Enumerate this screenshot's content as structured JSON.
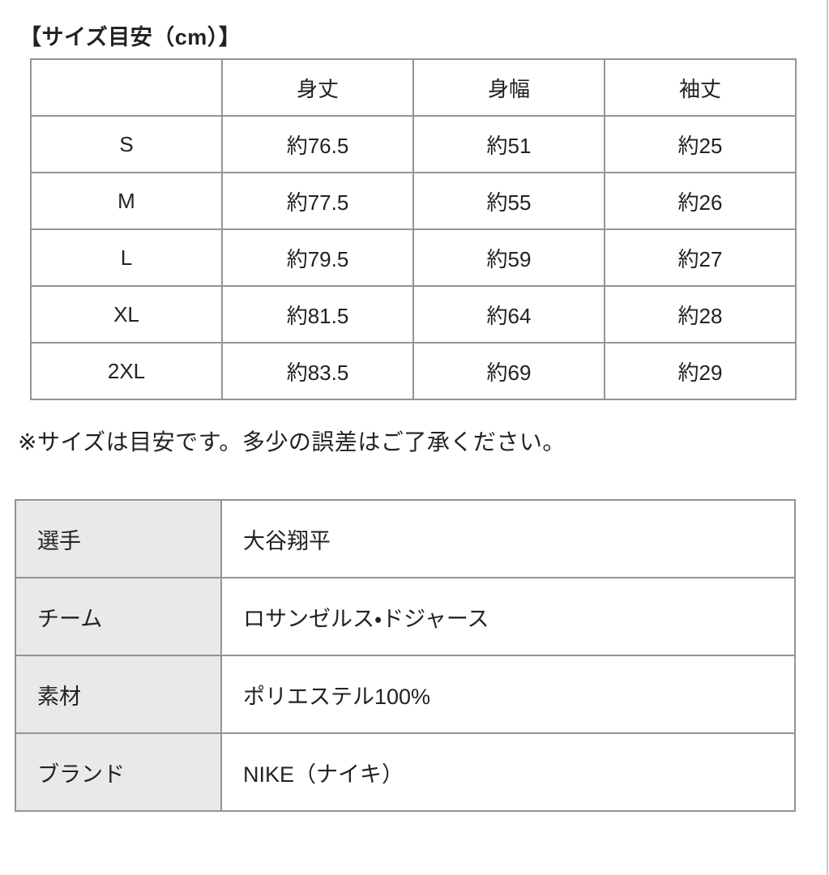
{
  "page": {
    "title": "【サイズ目安（cm）】",
    "note": "※サイズは目安です。多少の誤差はご了承ください。"
  },
  "size_table": {
    "columns": [
      "",
      "身丈",
      "身幅",
      "袖丈"
    ],
    "rows": [
      {
        "size": "S",
        "values": [
          "約76.5",
          "約51",
          "約25"
        ]
      },
      {
        "size": "M",
        "values": [
          "約77.5",
          "約55",
          "約26"
        ]
      },
      {
        "size": "L",
        "values": [
          "約79.5",
          "約59",
          "約27"
        ]
      },
      {
        "size": "XL",
        "values": [
          "約81.5",
          "約64",
          "約28"
        ]
      },
      {
        "size": "2XL",
        "values": [
          "約83.5",
          "約69",
          "約29"
        ]
      }
    ]
  },
  "spec_table": {
    "rows": [
      {
        "label": "選手",
        "value": "大谷翔平"
      },
      {
        "label": "チーム",
        "value": "ロサンゼルス・ドジャース"
      },
      {
        "label": "素材",
        "value": "ポリエステル100%"
      },
      {
        "label": "ブランド",
        "value": "NIKE（ナイキ）"
      }
    ]
  },
  "colors": {
    "border": "#949494",
    "label_bg": "#e9e9e7",
    "text": "#222222",
    "edge_line": "#c9c9c9"
  }
}
